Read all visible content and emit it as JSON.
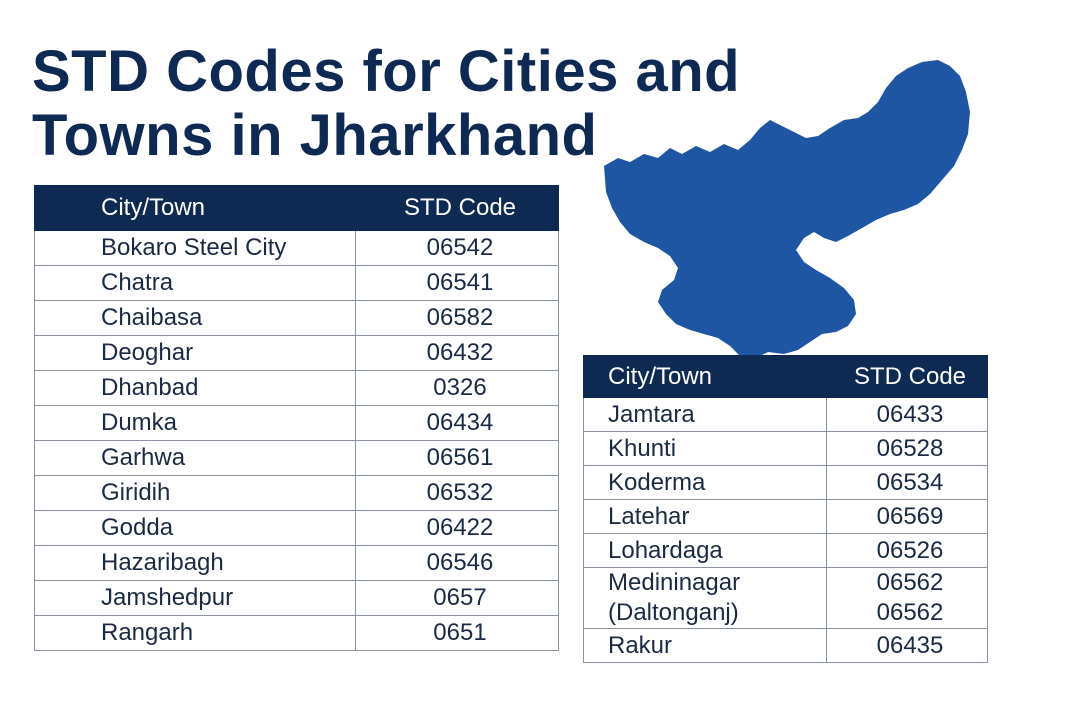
{
  "title": {
    "line1": "STD Codes for Cities and",
    "line2": "Towns in Jharkhand"
  },
  "map": {
    "icon": "jharkhand-map-icon",
    "color": "#1e56a3"
  },
  "colors": {
    "header_bg": "#0f2a52",
    "title": "#0f2a52"
  },
  "left_table": {
    "headers": {
      "city": "City/Town",
      "code": "STD Code"
    },
    "rows": [
      {
        "city": "Bokaro Steel City",
        "code": "06542"
      },
      {
        "city": "Chatra",
        "code": "06541"
      },
      {
        "city": "Chaibasa",
        "code": "06582"
      },
      {
        "city": "Deoghar",
        "code": "06432"
      },
      {
        "city": "Dhanbad",
        "code": "0326"
      },
      {
        "city": "Dumka",
        "code": "06434"
      },
      {
        "city": "Garhwa",
        "code": "06561"
      },
      {
        "city": "Giridih",
        "code": "06532"
      },
      {
        "city": "Godda",
        "code": "06422"
      },
      {
        "city": "Hazaribagh",
        "code": "06546"
      },
      {
        "city": "Jamshedpur",
        "code": "0657"
      },
      {
        "city": "Rangarh",
        "code": "0651"
      }
    ]
  },
  "right_table": {
    "headers": {
      "city": "City/Town",
      "code": "STD Code"
    },
    "rows": [
      {
        "city": "Jamtara",
        "code": "06433"
      },
      {
        "city": "Khunti",
        "code": "06528"
      },
      {
        "city": "Koderma",
        "code": "06534"
      },
      {
        "city": "Latehar",
        "code": "06569"
      },
      {
        "city": "Lohardaga",
        "code": "06526"
      },
      {
        "city_line1": "Medininagar",
        "city_line2": "(Daltonganj)",
        "code_line1": "06562",
        "code_line2": "06562"
      },
      {
        "city": "Rakur",
        "code": "06435"
      }
    ]
  }
}
